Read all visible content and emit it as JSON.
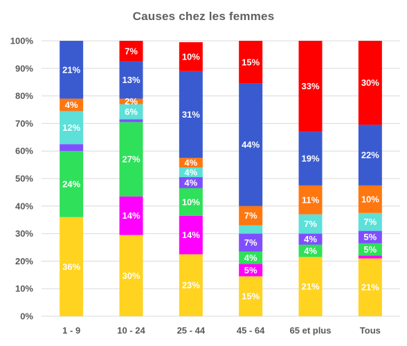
{
  "chart_data": {
    "type": "bar",
    "stacked": true,
    "title": "Causes chez les femmes",
    "xlabel": "",
    "ylabel": "",
    "ylim": [
      0,
      100
    ],
    "yticks": [
      "0%",
      "10%",
      "20%",
      "30%",
      "40%",
      "50%",
      "60%",
      "70%",
      "80%",
      "90%",
      "100%"
    ],
    "grid": true,
    "legend": "none",
    "categories": [
      "1 - 9",
      "10 - 24",
      "25 - 44",
      "45 - 64",
      "65 et plus",
      "Tous"
    ],
    "series": [
      {
        "color": "#ffd320",
        "values": [
          36,
          29.5,
          22.5,
          14.5,
          21.5,
          21
        ],
        "labels": [
          "36%",
          "30%",
          "23%",
          "15%",
          "21%",
          "21%"
        ]
      },
      {
        "color": "#ff00ff",
        "values": [
          0,
          14,
          14,
          4.5,
          0,
          1
        ],
        "labels": [
          "",
          "14%",
          "14%",
          "5%",
          "",
          ""
        ]
      },
      {
        "color": "#2fe05a",
        "values": [
          24,
          27,
          10,
          4.5,
          4.5,
          4.5
        ],
        "labels": [
          "24%",
          "27%",
          "10%",
          "4%",
          "4%",
          "5%"
        ]
      },
      {
        "color": "#7f4fff",
        "values": [
          2.5,
          1,
          4,
          6.5,
          4,
          4.5
        ],
        "labels": [
          "",
          "",
          "4%",
          "7%",
          "4%",
          "5%"
        ]
      },
      {
        "color": "#5ce0d8",
        "values": [
          12,
          5.5,
          3.5,
          3,
          7,
          6.5
        ],
        "labels": [
          "12%",
          "6%",
          "4%",
          "",
          "7%",
          "7%"
        ]
      },
      {
        "color": "#ff7711",
        "values": [
          4.5,
          2,
          3.5,
          7,
          10.5,
          10
        ],
        "labels": [
          "4%",
          "2%",
          "4%",
          "7%",
          "11%",
          "10%"
        ]
      },
      {
        "color": "#3a5bd0",
        "values": [
          21,
          13.5,
          31.5,
          44.5,
          19.5,
          22
        ],
        "labels": [
          "21%",
          "13%",
          "31%",
          "44%",
          "19%",
          "22%"
        ]
      },
      {
        "color": "#ff0000",
        "values": [
          0,
          7.5,
          10.5,
          15.5,
          33,
          30.5
        ],
        "labels": [
          "",
          "7%",
          "10%",
          "15%",
          "33%",
          "30%"
        ]
      }
    ]
  }
}
